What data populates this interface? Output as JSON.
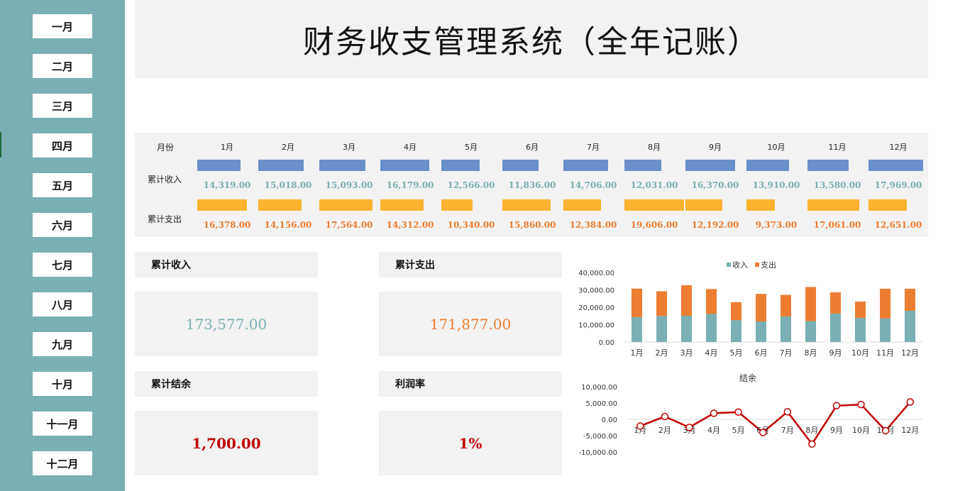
{
  "sidebar": {
    "months": [
      "一月",
      "二月",
      "三月",
      "四月",
      "五月",
      "六月",
      "七月",
      "八月",
      "九月",
      "十月",
      "十一月",
      "十二月"
    ]
  },
  "title": "财务收支管理系统（全年记账）",
  "table": {
    "month_label": "月份",
    "income_label": "累计收入",
    "expense_label": "累计支出",
    "months": [
      "1月",
      "2月",
      "3月",
      "4月",
      "5月",
      "6月",
      "7月",
      "8月",
      "9月",
      "10月",
      "11月",
      "12月"
    ],
    "income": [
      "14,319.00",
      "15,018.00",
      "15,093.00",
      "16,179.00",
      "12,566.00",
      "11,836.00",
      "14,706.00",
      "12,031.00",
      "16,370.00",
      "13,910.00",
      "13,580.00",
      "17,969.00"
    ],
    "expense": [
      "16,378.00",
      "14,156.00",
      "17,564.00",
      "14,312.00",
      "10,340.00",
      "15,860.00",
      "12,384.00",
      "19,606.00",
      "12,192.00",
      "9,373.00",
      "17,061.00",
      "12,651.00"
    ]
  },
  "cards": {
    "income": {
      "label": "累计收入",
      "value": "173,577.00",
      "color": "#7aafb3"
    },
    "expense": {
      "label": "累计支出",
      "value": "171,877.00",
      "color": "#ed7d31"
    },
    "balance": {
      "label": "累计结余",
      "value": "1,700.00",
      "color": "#c00000"
    },
    "profit": {
      "label": "利润率",
      "value": "1%",
      "color": "#c00000"
    }
  },
  "colors": {
    "sidebar": "#7aafb3",
    "income_bar": "#6a8fc9",
    "expense_bar": "#fbb330",
    "income_series": "#7aafb3",
    "expense_series": "#ed7d31",
    "balance_line": "#c00000"
  },
  "chart_data": [
    {
      "type": "bar",
      "stacked": true,
      "categories": [
        "1月",
        "2月",
        "3月",
        "4月",
        "5月",
        "6月",
        "7月",
        "8月",
        "9月",
        "10月",
        "11月",
        "12月"
      ],
      "series": [
        {
          "name": "收入",
          "values": [
            14319,
            15018,
            15093,
            16179,
            12566,
            11836,
            14706,
            12031,
            16370,
            13910,
            13580,
            17969
          ]
        },
        {
          "name": "支出",
          "values": [
            16378,
            14156,
            17564,
            14312,
            10340,
            15860,
            12384,
            19606,
            12192,
            9373,
            17061,
            12651
          ]
        }
      ],
      "ylim": [
        0,
        40000
      ],
      "yticks": [
        "0.00",
        "10,000.00",
        "20,000.00",
        "30,000.00",
        "40,000.00"
      ],
      "legend": "top"
    },
    {
      "type": "line",
      "title": "结余",
      "categories": [
        "1月",
        "2月",
        "3月",
        "4月",
        "5月",
        "6月",
        "7月",
        "8月",
        "9月",
        "10月",
        "11月",
        "12月"
      ],
      "series": [
        {
          "name": "结余",
          "values": [
            -2059,
            862,
            -2471,
            1867,
            2226,
            -4024,
            2322,
            -7575,
            4178,
            4537,
            -3481,
            5318
          ]
        }
      ],
      "ylim": [
        -10000,
        10000
      ],
      "yticks": [
        "10,000.00",
        "5,000.00",
        "0.00",
        "-5,000.00",
        "-10,000.00"
      ]
    }
  ]
}
